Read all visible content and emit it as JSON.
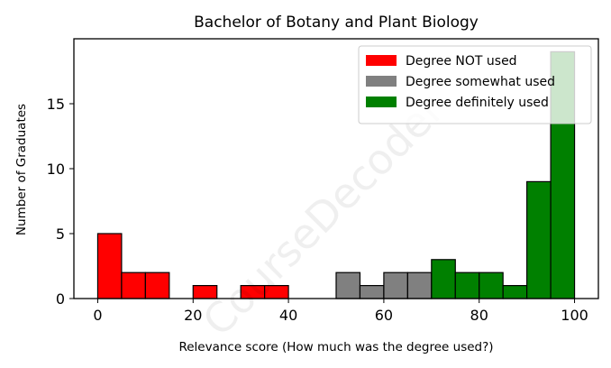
{
  "chart_data": {
    "type": "bar",
    "title": "Bachelor of Botany and Plant Biology",
    "xlabel": "Relevance score (How much was the degree used?)",
    "ylabel": "Number of Graduates",
    "xlim": [
      -5,
      105
    ],
    "ylim": [
      0,
      20
    ],
    "x_ticks": [
      0,
      20,
      40,
      60,
      80,
      100
    ],
    "y_ticks": [
      0,
      5,
      10,
      15
    ],
    "bin_width": 5,
    "series": [
      {
        "name": "Degree NOT used",
        "color": "#ff0000",
        "bins": [
          {
            "x": 0,
            "count": 5
          },
          {
            "x": 5,
            "count": 2
          },
          {
            "x": 10,
            "count": 2
          },
          {
            "x": 15,
            "count": 0
          },
          {
            "x": 20,
            "count": 1
          },
          {
            "x": 25,
            "count": 0
          },
          {
            "x": 30,
            "count": 1
          },
          {
            "x": 35,
            "count": 1
          },
          {
            "x": 40,
            "count": 0
          },
          {
            "x": 45,
            "count": 0
          }
        ]
      },
      {
        "name": "Degree somewhat used",
        "color": "#808080",
        "bins": [
          {
            "x": 50,
            "count": 2
          },
          {
            "x": 55,
            "count": 1
          },
          {
            "x": 60,
            "count": 2
          },
          {
            "x": 65,
            "count": 2
          }
        ]
      },
      {
        "name": "Degree definitely used",
        "color": "#008000",
        "bins": [
          {
            "x": 70,
            "count": 3
          },
          {
            "x": 75,
            "count": 2
          },
          {
            "x": 80,
            "count": 2
          },
          {
            "x": 85,
            "count": 1
          },
          {
            "x": 90,
            "count": 9
          },
          {
            "x": 95,
            "count": 19
          }
        ]
      }
    ],
    "legend_position": "top-right",
    "grid": false
  },
  "watermark": "CourseDecoder"
}
